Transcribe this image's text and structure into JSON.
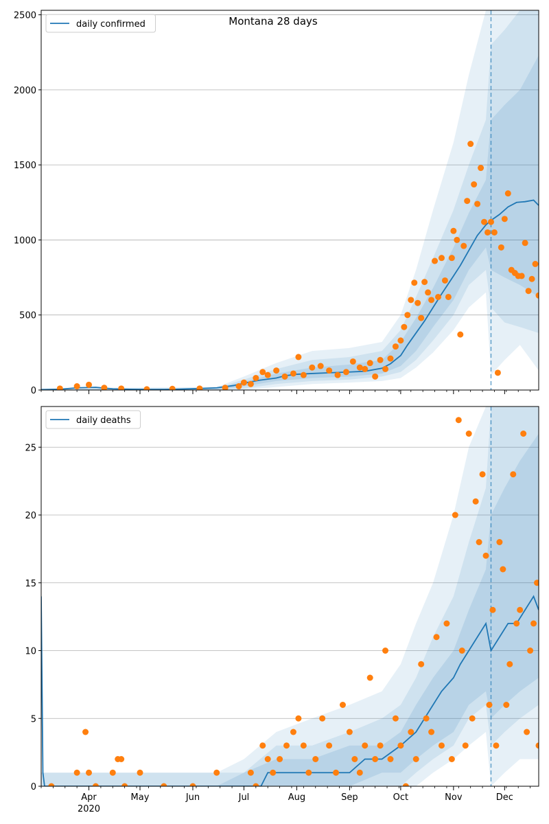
{
  "figure_title": "Montana 28 days",
  "colors": {
    "line": "#1f77b4",
    "points": "#ff7f0e",
    "band": "#1f77b4",
    "grid": "#b0b0b0",
    "forecast_marker": "#1f77b4"
  },
  "chart_data": [
    {
      "type": "line",
      "title": "",
      "legend": {
        "label": "daily confirmed",
        "placement": "top-left"
      },
      "ylim": [
        0,
        2530
      ],
      "yticks": [
        0,
        500,
        1000,
        1500,
        2000,
        2500
      ],
      "ytick_labels": [
        "0",
        "500",
        "1000",
        "1500",
        "2000",
        "2500"
      ],
      "xlim": [
        "2020-03-04",
        "2020-12-21"
      ],
      "forecast_start": "2020-11-23",
      "grid": "horizontal",
      "series_line": {
        "name": "daily confirmed",
        "x": [
          "2020-03-04",
          "2020-03-15",
          "2020-03-25",
          "2020-04-05",
          "2020-04-15",
          "2020-04-25",
          "2020-05-05",
          "2020-05-15",
          "2020-05-25",
          "2020-06-05",
          "2020-06-15",
          "2020-06-25",
          "2020-07-01",
          "2020-07-10",
          "2020-07-20",
          "2020-07-25",
          "2020-08-01",
          "2020-08-10",
          "2020-08-20",
          "2020-09-01",
          "2020-09-10",
          "2020-09-20",
          "2020-09-25",
          "2020-10-01",
          "2020-10-05",
          "2020-10-10",
          "2020-10-15",
          "2020-10-20",
          "2020-10-25",
          "2020-11-01",
          "2020-11-05",
          "2020-11-10",
          "2020-11-15",
          "2020-11-20",
          "2020-11-23",
          "2020-11-28",
          "2020-12-03",
          "2020-12-08",
          "2020-12-13",
          "2020-12-18",
          "2020-12-21"
        ],
        "y": [
          2,
          5,
          15,
          18,
          8,
          5,
          4,
          4,
          6,
          10,
          15,
          30,
          45,
          65,
          80,
          95,
          105,
          110,
          115,
          120,
          125,
          145,
          175,
          230,
          300,
          380,
          460,
          550,
          640,
          760,
          830,
          930,
          1030,
          1100,
          1130,
          1170,
          1220,
          1250,
          1255,
          1265,
          1230
        ]
      },
      "bands": [
        {
          "name": "outer",
          "x": [
            "2020-03-04",
            "2020-06-15",
            "2020-07-01",
            "2020-07-20",
            "2020-08-10",
            "2020-09-01",
            "2020-09-20",
            "2020-10-01",
            "2020-10-10",
            "2020-10-20",
            "2020-11-01",
            "2020-11-10",
            "2020-11-20",
            "2020-11-23",
            "2020-12-01",
            "2020-12-10",
            "2020-12-21"
          ],
          "upper": [
            12,
            20,
            90,
            180,
            260,
            280,
            320,
            500,
            800,
            1200,
            1650,
            2100,
            2530,
            2530,
            2530,
            2530,
            2530
          ],
          "lower": [
            0,
            0,
            0,
            20,
            40,
            50,
            60,
            80,
            150,
            250,
            400,
            550,
            650,
            100,
            200,
            300,
            130
          ]
        },
        {
          "name": "middle",
          "x": [
            "2020-03-04",
            "2020-06-15",
            "2020-07-01",
            "2020-07-20",
            "2020-08-10",
            "2020-09-01",
            "2020-09-20",
            "2020-10-01",
            "2020-10-10",
            "2020-10-20",
            "2020-11-01",
            "2020-11-10",
            "2020-11-20",
            "2020-11-23",
            "2020-12-01",
            "2020-12-10",
            "2020-12-21"
          ],
          "upper": [
            8,
            15,
            70,
            140,
            200,
            220,
            260,
            400,
            620,
            880,
            1200,
            1500,
            1800,
            2300,
            2400,
            2530,
            2530
          ],
          "lower": [
            0,
            0,
            10,
            40,
            60,
            70,
            90,
            120,
            200,
            330,
            500,
            700,
            800,
            550,
            450,
            420,
            380
          ]
        },
        {
          "name": "inner",
          "x": [
            "2020-03-04",
            "2020-06-15",
            "2020-07-01",
            "2020-07-20",
            "2020-08-10",
            "2020-09-01",
            "2020-09-20",
            "2020-10-01",
            "2020-10-10",
            "2020-10-20",
            "2020-11-01",
            "2020-11-10",
            "2020-11-20",
            "2020-11-23",
            "2020-12-01",
            "2020-12-10",
            "2020-12-21"
          ],
          "upper": [
            5,
            10,
            55,
            110,
            150,
            170,
            200,
            320,
            480,
            680,
            950,
            1180,
            1400,
            1800,
            1900,
            2000,
            2230
          ],
          "lower": [
            0,
            2,
            25,
            60,
            80,
            90,
            110,
            160,
            260,
            420,
            600,
            800,
            950,
            800,
            750,
            700,
            620
          ]
        }
      ],
      "series_points": {
        "name": "observed",
        "x": [
          "2020-03-15",
          "2020-03-25",
          "2020-04-01",
          "2020-04-10",
          "2020-04-20",
          "2020-05-05",
          "2020-05-20",
          "2020-06-05",
          "2020-06-20",
          "2020-06-28",
          "2020-07-01",
          "2020-07-05",
          "2020-07-08",
          "2020-07-12",
          "2020-07-15",
          "2020-07-20",
          "2020-07-25",
          "2020-07-30",
          "2020-08-02",
          "2020-08-05",
          "2020-08-10",
          "2020-08-15",
          "2020-08-20",
          "2020-08-25",
          "2020-08-30",
          "2020-09-03",
          "2020-09-07",
          "2020-09-10",
          "2020-09-13",
          "2020-09-16",
          "2020-09-19",
          "2020-09-22",
          "2020-09-25",
          "2020-09-28",
          "2020-10-01",
          "2020-10-03",
          "2020-10-05",
          "2020-10-07",
          "2020-10-09",
          "2020-10-11",
          "2020-10-13",
          "2020-10-15",
          "2020-10-17",
          "2020-10-19",
          "2020-10-21",
          "2020-10-23",
          "2020-10-25",
          "2020-10-27",
          "2020-10-29",
          "2020-10-31",
          "2020-11-01",
          "2020-11-03",
          "2020-11-05",
          "2020-11-07",
          "2020-11-09",
          "2020-11-11",
          "2020-11-13",
          "2020-11-15",
          "2020-11-17",
          "2020-11-19",
          "2020-11-21",
          "2020-11-23",
          "2020-11-25",
          "2020-11-27",
          "2020-11-29",
          "2020-12-01",
          "2020-12-03",
          "2020-12-05",
          "2020-12-07",
          "2020-12-09",
          "2020-12-11",
          "2020-12-13",
          "2020-12-15",
          "2020-12-17",
          "2020-12-19",
          "2020-12-21"
        ],
        "y": [
          10,
          25,
          35,
          15,
          10,
          5,
          8,
          10,
          15,
          25,
          50,
          40,
          80,
          120,
          100,
          130,
          90,
          110,
          220,
          100,
          150,
          160,
          130,
          100,
          120,
          190,
          150,
          140,
          180,
          90,
          200,
          140,
          210,
          290,
          330,
          420,
          500,
          600,
          715,
          580,
          480,
          720,
          650,
          600,
          860,
          620,
          880,
          730,
          620,
          880,
          1060,
          1000,
          370,
          960,
          1260,
          1640,
          1370,
          1240,
          1480,
          1120,
          1050,
          1120,
          1050,
          115,
          950,
          1140,
          1310,
          800,
          780,
          760,
          760,
          980,
          660,
          740,
          840,
          630
        ]
      }
    },
    {
      "type": "line",
      "title": "",
      "legend": {
        "label": "daily deaths",
        "placement": "top-left"
      },
      "ylim": [
        0,
        28
      ],
      "yticks": [
        0,
        5,
        10,
        15,
        20,
        25
      ],
      "ytick_labels": [
        "0",
        "5",
        "10",
        "15",
        "20",
        "25"
      ],
      "xlim": [
        "2020-03-04",
        "2020-12-21"
      ],
      "forecast_start": "2020-11-23",
      "grid": "horizontal",
      "x_tick_labels": [
        "Apr",
        "May",
        "Jun",
        "Jul",
        "Aug",
        "Sep",
        "Oct",
        "Nov",
        "Dec"
      ],
      "x_tick_dates": [
        "2020-04-01",
        "2020-05-01",
        "2020-06-01",
        "2020-07-01",
        "2020-08-01",
        "2020-09-01",
        "2020-10-01",
        "2020-11-01",
        "2020-12-01"
      ],
      "year_label": "2020",
      "series_line": {
        "name": "daily deaths",
        "x": [
          "2020-03-04",
          "2020-03-05",
          "2020-03-06",
          "2020-07-10",
          "2020-07-11",
          "2020-07-15",
          "2020-07-20",
          "2020-08-01",
          "2020-08-10",
          "2020-09-01",
          "2020-09-10",
          "2020-09-20",
          "2020-10-01",
          "2020-10-10",
          "2020-10-15",
          "2020-10-20",
          "2020-10-25",
          "2020-11-01",
          "2020-11-05",
          "2020-11-10",
          "2020-11-15",
          "2020-11-20",
          "2020-11-23",
          "2020-11-28",
          "2020-12-03",
          "2020-12-08",
          "2020-12-13",
          "2020-12-18",
          "2020-12-21"
        ],
        "y": [
          14,
          1,
          0,
          0,
          0,
          1,
          1,
          1,
          1,
          1,
          2,
          2,
          3,
          4,
          5,
          6,
          7,
          8,
          9,
          10,
          11,
          12,
          10,
          11,
          12,
          12,
          13,
          14,
          13
        ]
      },
      "bands": [
        {
          "name": "outer",
          "x": [
            "2020-03-04",
            "2020-06-15",
            "2020-07-01",
            "2020-07-20",
            "2020-08-10",
            "2020-09-01",
            "2020-09-20",
            "2020-10-01",
            "2020-10-10",
            "2020-10-20",
            "2020-11-01",
            "2020-11-10",
            "2020-11-20",
            "2020-11-23",
            "2020-12-01",
            "2020-12-10",
            "2020-12-21"
          ],
          "upper": [
            1,
            1,
            2,
            4,
            5,
            6,
            7,
            9,
            12,
            15,
            20,
            25,
            28,
            28,
            28,
            28,
            28
          ],
          "lower": [
            0,
            0,
            0,
            0,
            0,
            0,
            0,
            0,
            0,
            1,
            2,
            3,
            4,
            0,
            1,
            2,
            2
          ]
        },
        {
          "name": "middle",
          "x": [
            "2020-03-04",
            "2020-06-15",
            "2020-07-01",
            "2020-07-20",
            "2020-08-10",
            "2020-09-01",
            "2020-09-20",
            "2020-10-01",
            "2020-10-10",
            "2020-10-20",
            "2020-11-01",
            "2020-11-10",
            "2020-11-20",
            "2020-11-23",
            "2020-12-01",
            "2020-12-10",
            "2020-12-21"
          ],
          "upper": [
            1,
            1,
            1,
            3,
            3,
            4,
            5,
            6,
            8,
            11,
            14,
            18,
            22,
            28,
            28,
            28,
            28
          ],
          "lower": [
            0,
            0,
            0,
            0,
            0,
            0,
            0,
            0,
            1,
            2,
            3,
            5,
            6,
            3,
            4,
            5,
            6
          ]
        },
        {
          "name": "inner",
          "x": [
            "2020-03-04",
            "2020-06-15",
            "2020-07-01",
            "2020-07-20",
            "2020-08-10",
            "2020-09-01",
            "2020-09-20",
            "2020-10-01",
            "2020-10-10",
            "2020-10-20",
            "2020-11-01",
            "2020-11-10",
            "2020-11-20",
            "2020-11-23",
            "2020-12-01",
            "2020-12-10",
            "2020-12-21"
          ],
          "upper": [
            0,
            0,
            1,
            2,
            2,
            3,
            3,
            4,
            6,
            8,
            10,
            13,
            16,
            20,
            22,
            24,
            26
          ],
          "lower": [
            0,
            0,
            0,
            0,
            0,
            0,
            1,
            1,
            2,
            3,
            4,
            6,
            7,
            5,
            6,
            7,
            8
          ]
        }
      ],
      "series_points": {
        "name": "observed",
        "x": [
          "2020-03-10",
          "2020-03-25",
          "2020-03-30",
          "2020-04-01",
          "2020-04-05",
          "2020-04-15",
          "2020-04-18",
          "2020-04-20",
          "2020-04-22",
          "2020-05-01",
          "2020-05-15",
          "2020-06-01",
          "2020-06-15",
          "2020-07-05",
          "2020-07-08",
          "2020-07-12",
          "2020-07-15",
          "2020-07-18",
          "2020-07-22",
          "2020-07-26",
          "2020-07-30",
          "2020-08-02",
          "2020-08-05",
          "2020-08-08",
          "2020-08-12",
          "2020-08-16",
          "2020-08-20",
          "2020-08-24",
          "2020-08-28",
          "2020-09-01",
          "2020-09-04",
          "2020-09-07",
          "2020-09-10",
          "2020-09-13",
          "2020-09-16",
          "2020-09-19",
          "2020-09-22",
          "2020-09-25",
          "2020-09-28",
          "2020-10-01",
          "2020-10-04",
          "2020-10-07",
          "2020-10-10",
          "2020-10-13",
          "2020-10-16",
          "2020-10-19",
          "2020-10-22",
          "2020-10-25",
          "2020-10-28",
          "2020-10-31",
          "2020-11-02",
          "2020-11-04",
          "2020-11-06",
          "2020-11-08",
          "2020-11-10",
          "2020-11-12",
          "2020-11-14",
          "2020-11-16",
          "2020-11-18",
          "2020-11-20",
          "2020-11-22",
          "2020-11-24",
          "2020-11-26",
          "2020-11-28",
          "2020-11-30",
          "2020-12-02",
          "2020-12-04",
          "2020-12-06",
          "2020-12-08",
          "2020-12-10",
          "2020-12-12",
          "2020-12-14",
          "2020-12-16",
          "2020-12-18",
          "2020-12-20",
          "2020-12-21"
        ],
        "y": [
          0,
          1,
          4,
          1,
          0,
          1,
          2,
          2,
          0,
          1,
          0,
          0,
          1,
          1,
          0,
          3,
          2,
          1,
          2,
          3,
          4,
          5,
          3,
          1,
          2,
          5,
          3,
          1,
          6,
          4,
          2,
          1,
          3,
          8,
          2,
          3,
          10,
          2,
          5,
          3,
          0,
          4,
          2,
          9,
          5,
          4,
          11,
          3,
          12,
          2,
          20,
          27,
          10,
          3,
          26,
          5,
          21,
          18,
          23,
          17,
          6,
          13,
          3,
          18,
          16,
          6,
          9,
          23,
          12,
          13,
          26,
          4,
          10,
          12,
          15,
          3
        ]
      }
    }
  ]
}
